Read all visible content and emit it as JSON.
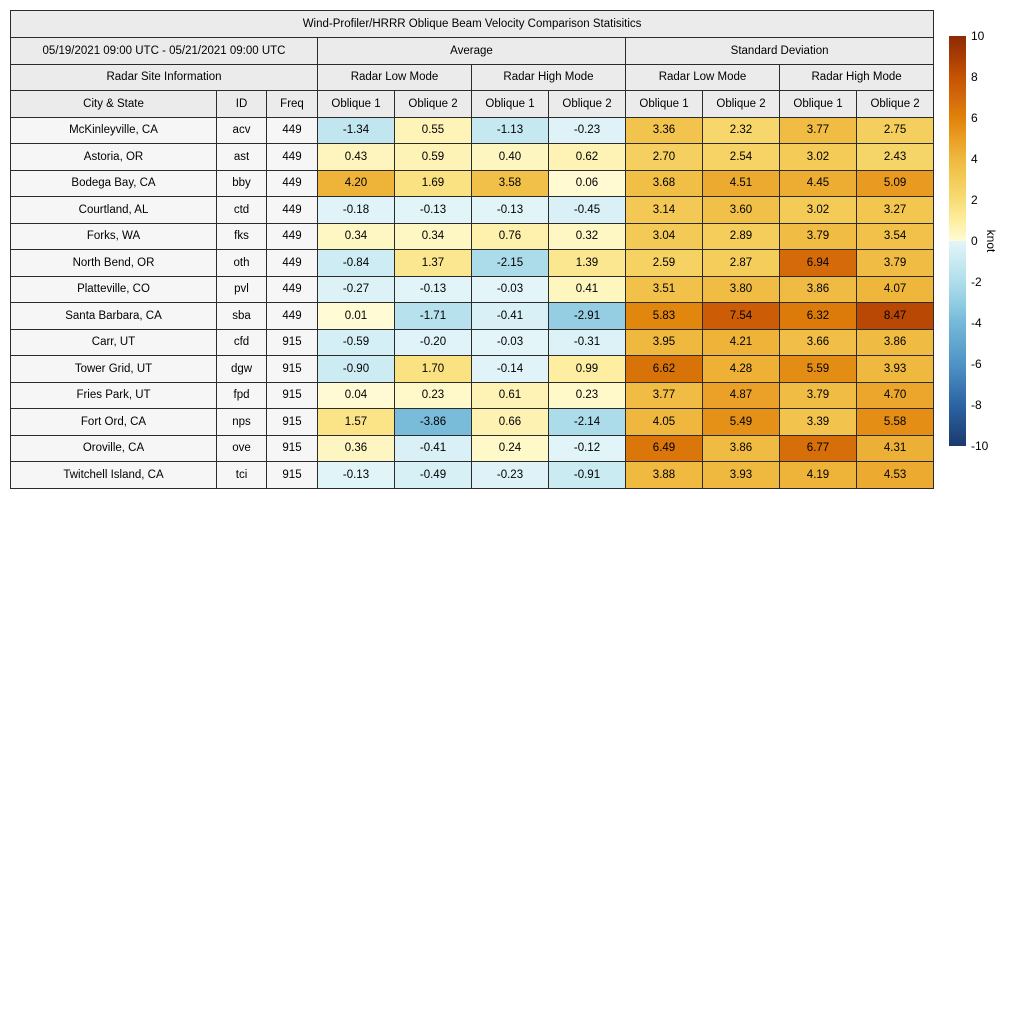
{
  "chart_data": {
    "type": "table",
    "title": "Wind-Profiler/HRRR Oblique Beam Velocity Comparison Statisitics",
    "date_range": "05/19/2021 09:00 UTC - 05/21/2021 09:00 UTC",
    "groups": [
      "Average",
      "Standard Deviation"
    ],
    "site_info_label": "Radar Site Information",
    "mode_labels": [
      "Radar Low Mode",
      "Radar High Mode",
      "Radar Low Mode",
      "Radar High Mode"
    ],
    "columns": [
      "City & State",
      "ID",
      "Freq",
      "Oblique 1",
      "Oblique 2",
      "Oblique 1",
      "Oblique 2",
      "Oblique 1",
      "Oblique 2",
      "Oblique 1",
      "Oblique 2"
    ],
    "rows": [
      {
        "city": "McKinleyville, CA",
        "id": "acv",
        "freq": "449",
        "values": [
          -1.34,
          0.55,
          -1.13,
          -0.23,
          3.36,
          2.32,
          3.77,
          2.75
        ]
      },
      {
        "city": "Astoria, OR",
        "id": "ast",
        "freq": "449",
        "values": [
          0.43,
          0.59,
          0.4,
          0.62,
          2.7,
          2.54,
          3.02,
          2.43
        ]
      },
      {
        "city": "Bodega Bay, CA",
        "id": "bby",
        "freq": "449",
        "values": [
          4.2,
          1.69,
          3.58,
          0.06,
          3.68,
          4.51,
          4.45,
          5.09
        ]
      },
      {
        "city": "Courtland, AL",
        "id": "ctd",
        "freq": "449",
        "values": [
          -0.18,
          -0.13,
          -0.13,
          -0.45,
          3.14,
          3.6,
          3.02,
          3.27
        ]
      },
      {
        "city": "Forks, WA",
        "id": "fks",
        "freq": "449",
        "values": [
          0.34,
          0.34,
          0.76,
          0.32,
          3.04,
          2.89,
          3.79,
          3.54
        ]
      },
      {
        "city": "North Bend, OR",
        "id": "oth",
        "freq": "449",
        "values": [
          -0.84,
          1.37,
          -2.15,
          1.39,
          2.59,
          2.87,
          6.94,
          3.79
        ]
      },
      {
        "city": "Platteville, CO",
        "id": "pvl",
        "freq": "449",
        "values": [
          -0.27,
          -0.13,
          -0.03,
          0.41,
          3.51,
          3.8,
          3.86,
          4.07
        ]
      },
      {
        "city": "Santa Barbara, CA",
        "id": "sba",
        "freq": "449",
        "values": [
          0.01,
          -1.71,
          -0.41,
          -2.91,
          5.83,
          7.54,
          6.32,
          8.47
        ]
      },
      {
        "city": "Carr, UT",
        "id": "cfd",
        "freq": "915",
        "values": [
          -0.59,
          -0.2,
          -0.03,
          -0.31,
          3.95,
          4.21,
          3.66,
          3.86
        ]
      },
      {
        "city": "Tower Grid, UT",
        "id": "dgw",
        "freq": "915",
        "values": [
          -0.9,
          1.7,
          -0.14,
          0.99,
          6.62,
          4.28,
          5.59,
          3.93
        ]
      },
      {
        "city": "Fries Park, UT",
        "id": "fpd",
        "freq": "915",
        "values": [
          0.04,
          0.23,
          0.61,
          0.23,
          3.77,
          4.87,
          3.79,
          4.7
        ]
      },
      {
        "city": "Fort Ord, CA",
        "id": "nps",
        "freq": "915",
        "values": [
          1.57,
          -3.86,
          0.66,
          -2.14,
          4.05,
          5.49,
          3.39,
          5.58
        ]
      },
      {
        "city": "Oroville, CA",
        "id": "ove",
        "freq": "915",
        "values": [
          0.36,
          -0.41,
          0.24,
          -0.12,
          6.49,
          3.86,
          6.77,
          4.31
        ]
      },
      {
        "city": "Twitchell Island, CA",
        "id": "tci",
        "freq": "915",
        "values": [
          -0.13,
          -0.49,
          -0.23,
          -0.91,
          3.88,
          3.93,
          4.19,
          4.53
        ]
      }
    ],
    "colorbar": {
      "label": "knot",
      "min": -10,
      "max": 10,
      "ticks": [
        "10",
        "8",
        "6",
        "4",
        "2",
        "0",
        "-2",
        "-4",
        "-6",
        "-8",
        "-10"
      ],
      "colormap": [
        {
          "value": -10,
          "color": "#1a3a6d"
        },
        {
          "value": -8,
          "color": "#2c64a4"
        },
        {
          "value": -6,
          "color": "#4f93c6"
        },
        {
          "value": -4,
          "color": "#74b9d8"
        },
        {
          "value": -3,
          "color": "#92cde2"
        },
        {
          "value": -2,
          "color": "#b0ddeb"
        },
        {
          "value": -1,
          "color": "#c9eaf2"
        },
        {
          "value": -0.001,
          "color": "#e4f5f9"
        },
        {
          "value": 0.001,
          "color": "#fffbd5"
        },
        {
          "value": 1,
          "color": "#fdeea0"
        },
        {
          "value": 2,
          "color": "#f8dc74"
        },
        {
          "value": 3,
          "color": "#f4cb57"
        },
        {
          "value": 4,
          "color": "#efb83e"
        },
        {
          "value": 5,
          "color": "#ea9e23"
        },
        {
          "value": 6,
          "color": "#e0820a"
        },
        {
          "value": 7,
          "color": "#d3690a"
        },
        {
          "value": 8,
          "color": "#c65203"
        },
        {
          "value": 9,
          "color": "#a93c03"
        },
        {
          "value": 10,
          "color": "#8c2b04"
        }
      ]
    }
  }
}
